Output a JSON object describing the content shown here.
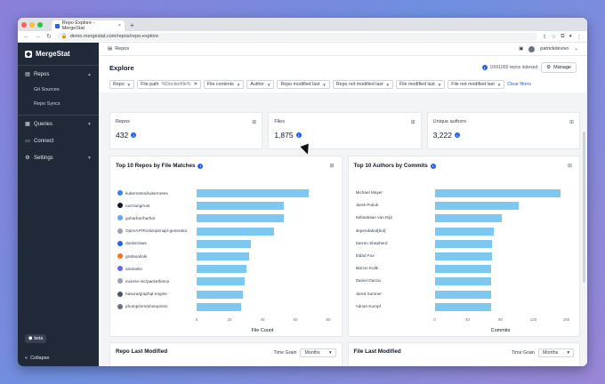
{
  "browser": {
    "tab_title": "Repo Explore - MergeStat",
    "url": "demo.mergestat.com/repos/repo-explore",
    "new_tab": "+"
  },
  "sidebar": {
    "brand": "MergeStat",
    "items": [
      {
        "label": "Repos",
        "icon": "repo-icon",
        "sub": [
          "Git Sources",
          "Repo Syncs"
        ]
      },
      {
        "label": "Queries",
        "icon": "query-icon"
      },
      {
        "label": "Connect",
        "icon": "connect-icon"
      },
      {
        "label": "Settings",
        "icon": "gear-icon"
      }
    ],
    "beta": "beta",
    "collapse": "Collapse"
  },
  "topbar": {
    "breadcrumb": "Repos",
    "user": "patrickdevivo"
  },
  "explore": {
    "title": "Explore",
    "indexed": "100/1000 repos indexed",
    "manage": "Manage",
    "filters": [
      {
        "label": "Repo"
      },
      {
        "label": "File path",
        "value": "%Dockerfile%",
        "closable": true
      },
      {
        "label": "File contents"
      },
      {
        "label": "Author"
      },
      {
        "label": "Repo modified last"
      },
      {
        "label": "Repo not modified last"
      },
      {
        "label": "File modified last"
      },
      {
        "label": "File not modified last"
      }
    ],
    "clear": "Clear filters"
  },
  "cards": [
    {
      "label": "Repos",
      "value": "432"
    },
    {
      "label": "Files",
      "value": "1,875"
    },
    {
      "label": "Unique authors",
      "value": "3,222"
    }
  ],
  "chart_data": [
    {
      "type": "bar",
      "orientation": "horizontal",
      "title": "Top 10 Repos by File Matches",
      "xlabel": "File Count",
      "categories": [
        "kubernetes/kubernetes",
        "rust-lang/rust",
        "goharbor/harbor",
        "OpenAPITools/openapi-generator",
        "docker/aws",
        "grafana/loki",
        "aria/astio",
        "inverse-inc/packetfence",
        "hasura/graphql-engine",
        "photoprism/photoprism"
      ],
      "values": [
        68,
        53,
        53,
        47,
        33,
        32,
        30,
        29,
        28,
        27
      ],
      "xticks": [
        0,
        20,
        40,
        60,
        80
      ],
      "xlim": [
        0,
        80
      ]
    },
    {
      "type": "bar",
      "orientation": "horizontal",
      "title": "Top 10 Authors by Commits",
      "xlabel": "Commits",
      "categories": [
        "Michael Mayer",
        "Jarek Potiuk",
        "Sebastiaan van Dijn",
        "dependabot[bot]",
        "Darren Shepherd",
        "Eldad Fux",
        "Marcin Kulik",
        "Daniel Garcia",
        "Jared Sumner",
        "Adrian Kumpf"
      ],
      "values": [
        153,
        102,
        82,
        72,
        70,
        70,
        69,
        69,
        69,
        69
      ],
      "xticks": [
        0,
        40,
        80,
        120,
        160
      ],
      "xlim": [
        0,
        160
      ]
    }
  ],
  "bottom": [
    {
      "title": "Repo Last Modified",
      "grain_label": "Time Grain",
      "grain": "Months"
    },
    {
      "title": "File Last Modified",
      "grain_label": "Time Grain",
      "grain": "Months"
    }
  ]
}
